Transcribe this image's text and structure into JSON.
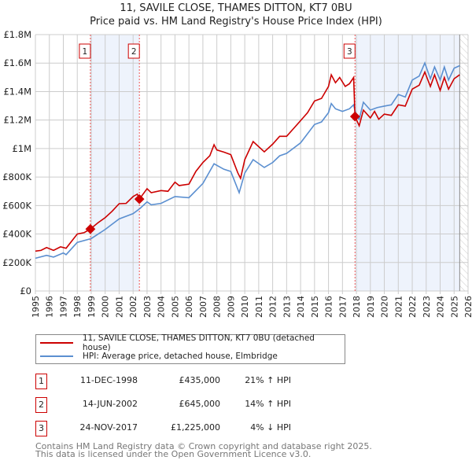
{
  "chart_data": {
    "type": "line",
    "title": "11, SAVILE CLOSE, THAMES DITTON, KT7 0BU",
    "subtitle": "Price paid vs. HM Land Registry's House Price Index (HPI)",
    "xlim": [
      1995,
      2026
    ],
    "ylim": [
      0,
      1800000
    ],
    "y_ticks": [
      {
        "v": 0,
        "label": "£0"
      },
      {
        "v": 200000,
        "label": "£200K"
      },
      {
        "v": 400000,
        "label": "£400K"
      },
      {
        "v": 600000,
        "label": "£600K"
      },
      {
        "v": 800000,
        "label": "£800K"
      },
      {
        "v": 1000000,
        "label": "£1M"
      },
      {
        "v": 1200000,
        "label": "£1.2M"
      },
      {
        "v": 1400000,
        "label": "£1.4M"
      },
      {
        "v": 1600000,
        "label": "£1.6M"
      },
      {
        "v": 1800000,
        "label": "£1.8M"
      }
    ],
    "x_ticks": [
      "1995",
      "1996",
      "1997",
      "1998",
      "1999",
      "2000",
      "2001",
      "2002",
      "2003",
      "2004",
      "2005",
      "2006",
      "2007",
      "2008",
      "2009",
      "2010",
      "2011",
      "2012",
      "2013",
      "2014",
      "2015",
      "2016",
      "2017",
      "2018",
      "2019",
      "2020",
      "2021",
      "2022",
      "2023",
      "2024",
      "2025",
      "2026"
    ],
    "grid": true,
    "colors": {
      "property": "#cc0000",
      "hpi": "#5b8fd0",
      "shade": "#eef3fc"
    },
    "shaded_ranges": [
      [
        1998.94,
        2002.45
      ],
      [
        2017.9,
        2025.4
      ]
    ],
    "data_end": 2025.4,
    "series": [
      {
        "name": "11, SAVILE CLOSE, THAMES DITTON, KT7 0BU (detached house)",
        "color": "#cc0000",
        "x": [
          1995,
          1995.4,
          1995.8,
          1996.3,
          1996.8,
          1997.2,
          1997.6,
          1998,
          1998.5,
          1998.94,
          1999.5,
          2000,
          2000.5,
          2001,
          2001.5,
          2002,
          2002.3,
          2002.45,
          2003,
          2003.3,
          2004,
          2004.5,
          2005,
          2005.3,
          2006,
          2006.5,
          2007,
          2007.5,
          2007.8,
          2008,
          2008.5,
          2009,
          2009.5,
          2009.7,
          2010,
          2010.6,
          2011.4,
          2012,
          2012.5,
          2013,
          2013.5,
          2014,
          2014.5,
          2015,
          2015.5,
          2016,
          2016.2,
          2016.5,
          2016.8,
          2017.2,
          2017.5,
          2017.8,
          2017.9,
          2018.2,
          2018.5,
          2019,
          2019.3,
          2019.6,
          2020,
          2020.5,
          2021,
          2021.5,
          2022,
          2022.5,
          2022.9,
          2023.3,
          2023.6,
          2024,
          2024.3,
          2024.6,
          2025,
          2025.4
        ],
        "y": [
          280000,
          285000,
          305000,
          285000,
          310000,
          300000,
          350000,
          400000,
          410000,
          435000,
          480000,
          515000,
          560000,
          613000,
          615000,
          663000,
          680000,
          645000,
          718000,
          690000,
          705000,
          700000,
          764000,
          740000,
          750000,
          840000,
          902000,
          950000,
          1027000,
          990000,
          975000,
          957000,
          830000,
          791000,
          922000,
          1049000,
          977000,
          1031000,
          1086000,
          1086000,
          1141000,
          1196000,
          1252000,
          1334000,
          1352000,
          1436000,
          1518000,
          1462000,
          1499000,
          1436000,
          1455000,
          1499000,
          1225000,
          1160000,
          1270000,
          1215000,
          1261000,
          1206000,
          1242000,
          1233000,
          1307000,
          1298000,
          1417000,
          1445000,
          1537000,
          1436000,
          1518000,
          1408000,
          1499000,
          1417000,
          1490000,
          1518000
        ]
      },
      {
        "name": "HPI: Average price, detached house, Elmbridge",
        "color": "#5b8fd0",
        "x": [
          1995,
          1995.8,
          1996.3,
          1997,
          1997.2,
          1998,
          1999,
          2000,
          2001,
          2002,
          2002.5,
          2003,
          2003.3,
          2004,
          2005,
          2006,
          2007,
          2007.8,
          2008.5,
          2009,
          2009.6,
          2010,
          2010.6,
          2011.4,
          2012,
          2012.5,
          2013,
          2014,
          2015,
          2015.5,
          2016,
          2016.2,
          2016.5,
          2017,
          2017.5,
          2017.8,
          2018,
          2018.2,
          2018.5,
          2019,
          2019.5,
          2020,
          2020.5,
          2021,
          2021.5,
          2022,
          2022.5,
          2022.9,
          2023.3,
          2023.6,
          2024,
          2024.3,
          2024.6,
          2025,
          2025.4
        ],
        "y": [
          230000,
          250000,
          238000,
          267000,
          255000,
          341000,
          368000,
          432000,
          506000,
          543000,
          580000,
          626000,
          605000,
          615000,
          663000,
          655000,
          755000,
          893000,
          855000,
          839000,
          690000,
          828000,
          922000,
          867000,
          902000,
          949000,
          966000,
          1040000,
          1169000,
          1187000,
          1252000,
          1316000,
          1279000,
          1261000,
          1279000,
          1307000,
          1224000,
          1206000,
          1325000,
          1270000,
          1288000,
          1298000,
          1307000,
          1380000,
          1362000,
          1481000,
          1509000,
          1601000,
          1490000,
          1573000,
          1481000,
          1573000,
          1481000,
          1564000,
          1582000
        ]
      }
    ],
    "sales": [
      {
        "n": "1",
        "x": 1998.94,
        "y": 435000,
        "date": "11-DEC-1998",
        "price": "£435,000",
        "hpi": "21% ↑ HPI"
      },
      {
        "n": "2",
        "x": 2002.45,
        "y": 645000,
        "date": "14-JUN-2002",
        "price": "£645,000",
        "hpi": "14% ↑ HPI"
      },
      {
        "n": "3",
        "x": 2017.9,
        "y": 1225000,
        "date": "24-NOV-2017",
        "price": "£1,225,000",
        "hpi": "4% ↓ HPI"
      }
    ],
    "legend_placement": "bottom"
  },
  "footer": {
    "line1": "Contains HM Land Registry data © Crown copyright and database right 2025.",
    "line2": "This data is licensed under the Open Government Licence v3.0."
  }
}
